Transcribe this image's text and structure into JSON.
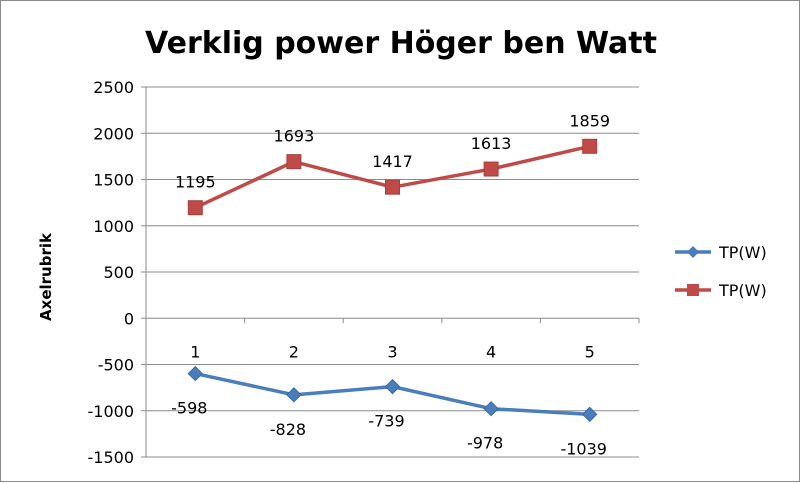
{
  "chart_data": {
    "type": "line",
    "title": "Verklig power Höger ben Watt",
    "xlabel": "",
    "ylabel": "Axelrubrik",
    "categories": [
      "1",
      "2",
      "3",
      "4",
      "5"
    ],
    "ylim": [
      -1500,
      2500
    ],
    "yticks": [
      "2500",
      "2000",
      "1500",
      "1000",
      "500",
      "0",
      "-500",
      "-1000",
      "-1500"
    ],
    "grid": true,
    "legend_position": "right",
    "series": [
      {
        "name": "TP(W)",
        "color": "#4a7ebb",
        "marker": "diamond",
        "values": [
          -598,
          -828,
          -739,
          -978,
          -1039
        ],
        "labels": [
          "-598",
          "-828",
          "-739",
          "-978",
          "-1039"
        ]
      },
      {
        "name": "TP(W)",
        "color": "#be4b48",
        "marker": "square",
        "values": [
          1195,
          1693,
          1417,
          1613,
          1859
        ],
        "labels": [
          "1195",
          "1693",
          "1417",
          "1613",
          "1859"
        ]
      }
    ]
  }
}
